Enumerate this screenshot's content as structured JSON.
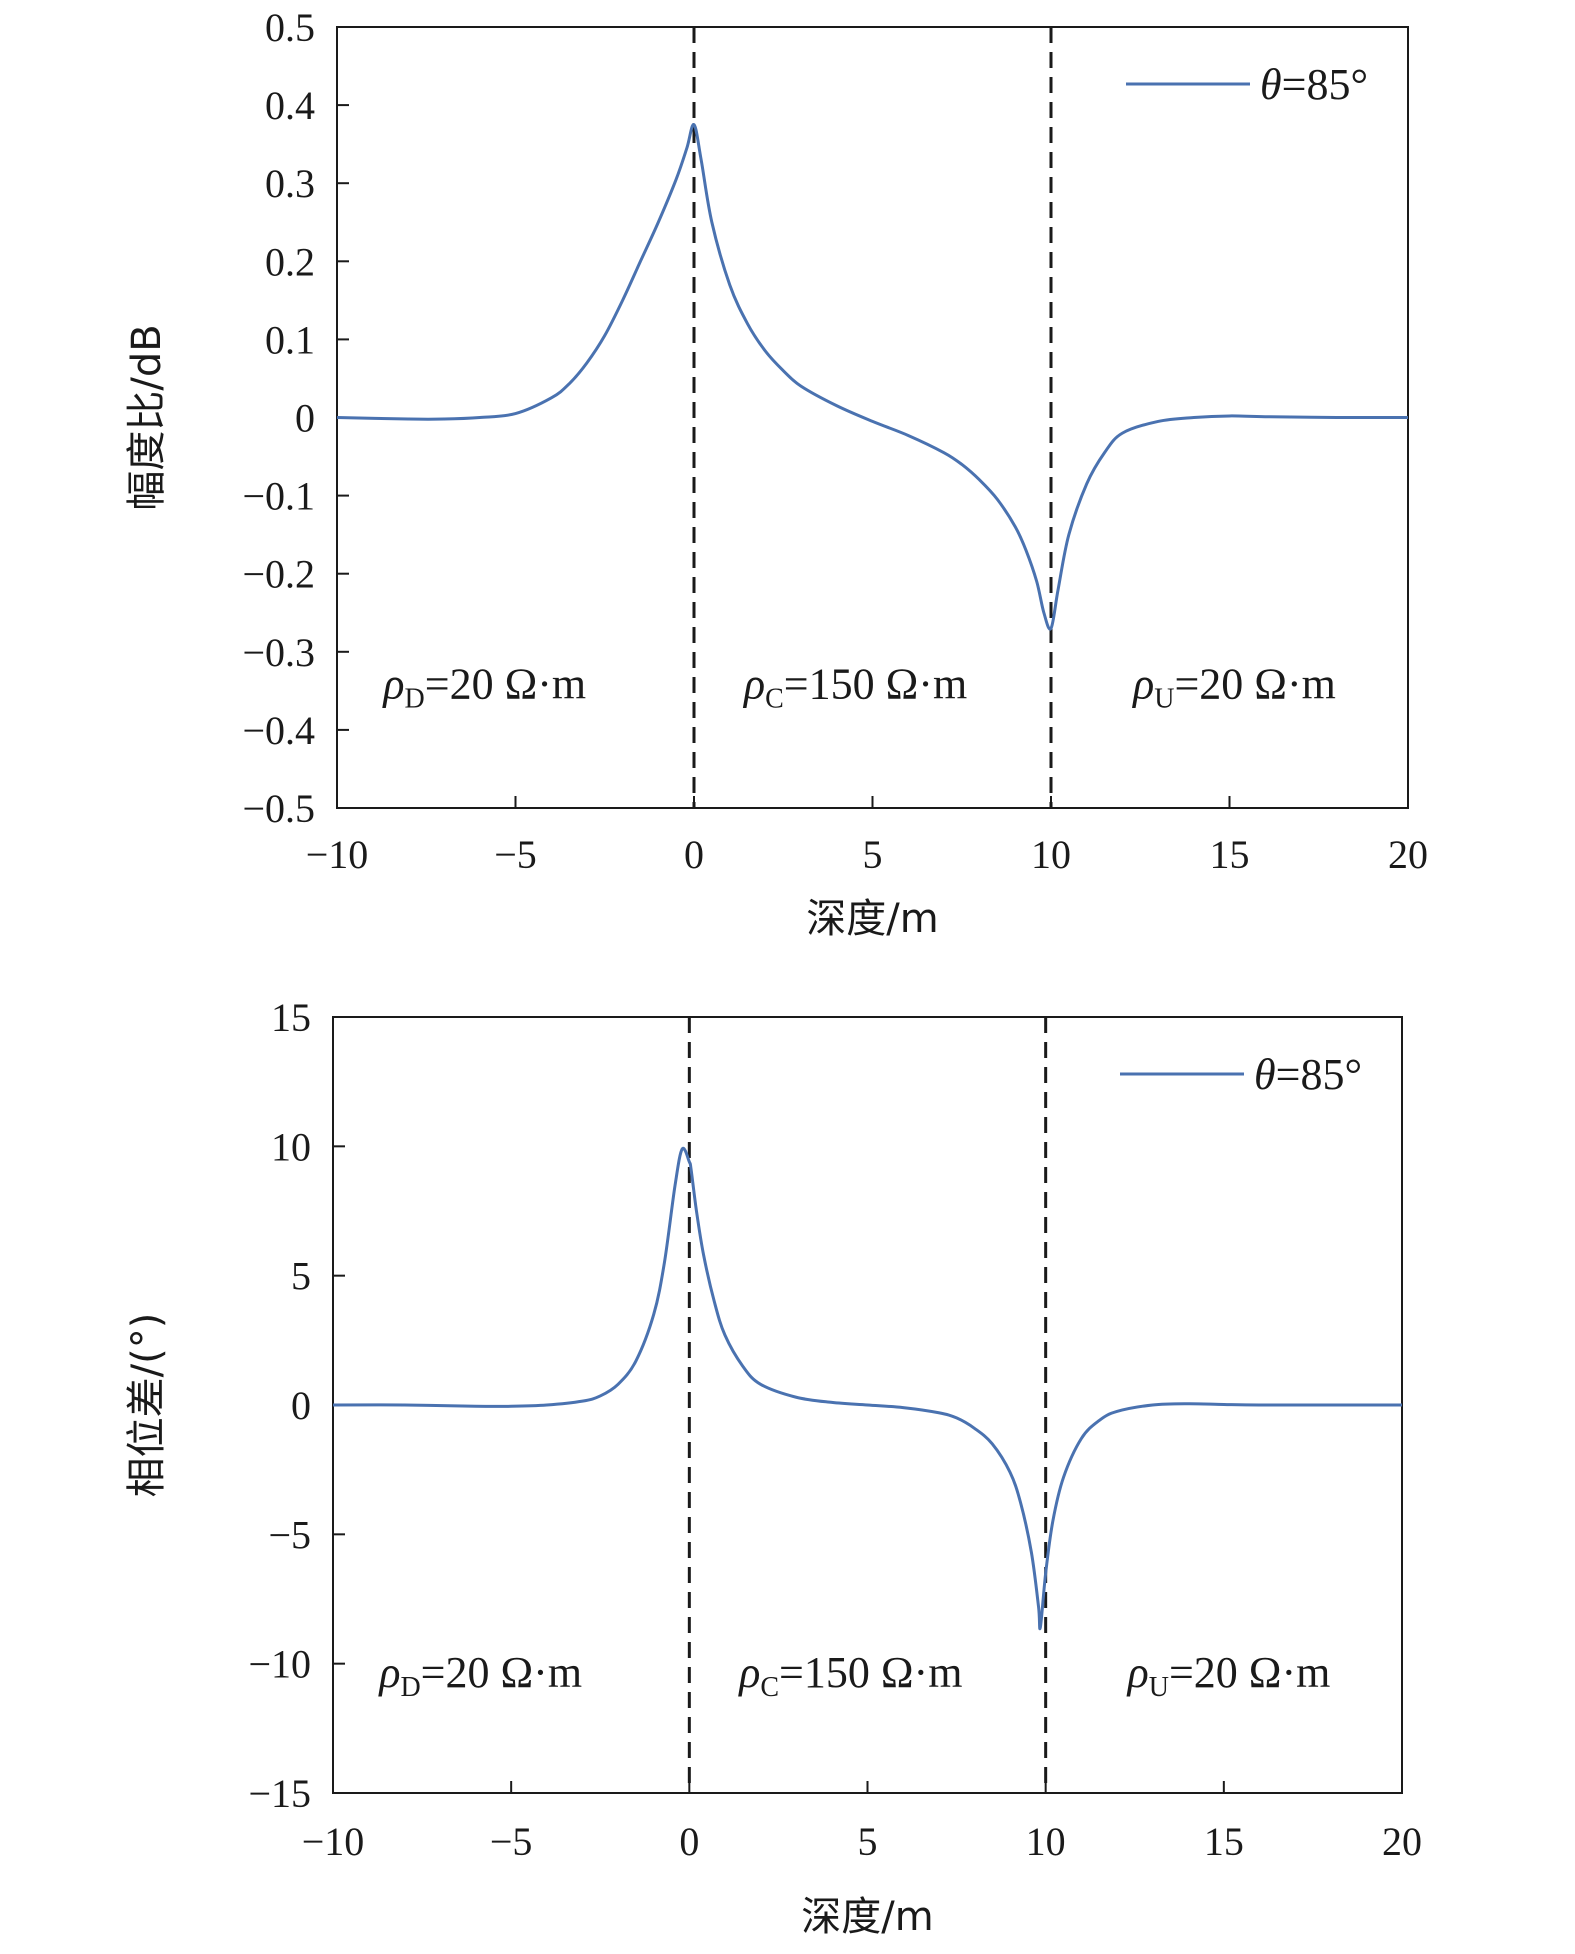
{
  "chart_data": [
    {
      "type": "line",
      "xlabel": "深度/m",
      "ylabel": "幅度比/dB",
      "xlim": [
        -10,
        20
      ],
      "ylim": [
        -0.5,
        0.5
      ],
      "xticks": [
        -10,
        -5,
        0,
        5,
        10,
        15,
        20
      ],
      "yticks": [
        0.5,
        0.4,
        0.3,
        0.2,
        0.1,
        0,
        -0.1,
        -0.2,
        -0.3,
        -0.4,
        -0.5
      ],
      "xtick_labels": [
        "−10",
        "−5",
        "0",
        "5",
        "10",
        "15",
        "20"
      ],
      "ytick_labels": [
        "0.5",
        "0.4",
        "0.3",
        "0.2",
        "0.1",
        "0",
        "−0.1",
        "−0.2",
        "−0.3",
        "−0.4",
        "−0.5"
      ],
      "grid": false,
      "legend": "top-right",
      "boundaries": [
        0,
        10
      ],
      "series": [
        {
          "name_symbol": "θ",
          "name_text": "=85°",
          "color": "#4a72b0",
          "x": [
            -10,
            -8,
            -7,
            -6,
            -5,
            -4,
            -3.5,
            -3,
            -2.5,
            -2,
            -1.5,
            -1,
            -0.5,
            -0.2,
            0,
            0.2,
            0.5,
            1,
            1.5,
            2,
            2.5,
            3,
            4,
            5,
            6,
            7,
            7.5,
            8,
            8.5,
            9,
            9.3,
            9.6,
            9.8,
            10,
            10.2,
            10.5,
            11,
            11.5,
            12,
            13,
            14,
            15,
            16,
            18,
            20
          ],
          "y": [
            0,
            -0.002,
            -0.002,
            0,
            0.005,
            0.025,
            0.043,
            0.07,
            0.105,
            0.15,
            0.2,
            0.25,
            0.305,
            0.345,
            0.375,
            0.33,
            0.25,
            0.17,
            0.12,
            0.085,
            0.06,
            0.04,
            0.015,
            -0.005,
            -0.023,
            -0.045,
            -0.06,
            -0.08,
            -0.105,
            -0.14,
            -0.17,
            -0.21,
            -0.25,
            -0.27,
            -0.22,
            -0.15,
            -0.085,
            -0.045,
            -0.02,
            -0.005,
            0,
            0.002,
            0.001,
            0,
            0
          ]
        }
      ],
      "annotations": [
        {
          "symbol": "ρ",
          "sub": "D",
          "text": "=20 Ω·m",
          "x": -8.7,
          "y": -0.36
        },
        {
          "symbol": "ρ",
          "sub": "C",
          "text": "=150 Ω·m",
          "x": 1.4,
          "y": -0.36
        },
        {
          "symbol": "ρ",
          "sub": "U",
          "text": "=20 Ω·m",
          "x": 12.3,
          "y": -0.36
        }
      ]
    },
    {
      "type": "line",
      "xlabel": "深度/m",
      "ylabel": "相位差/(°)",
      "xlim": [
        -10,
        20
      ],
      "ylim": [
        -15,
        15
      ],
      "xticks": [
        -10,
        -5,
        0,
        5,
        10,
        15,
        20
      ],
      "yticks": [
        15,
        10,
        5,
        0,
        -5,
        -10,
        -15
      ],
      "xtick_labels": [
        "−10",
        "−5",
        "0",
        "5",
        "10",
        "15",
        "20"
      ],
      "ytick_labels": [
        "15",
        "10",
        "5",
        "0",
        "−5",
        "−10",
        "−15"
      ],
      "grid": false,
      "legend": "top-right",
      "boundaries": [
        0,
        10
      ],
      "series": [
        {
          "name_symbol": "θ",
          "name_text": "=85°",
          "color": "#4a72b0",
          "x": [
            -10,
            -8,
            -6,
            -5,
            -4,
            -3,
            -2.5,
            -2,
            -1.5,
            -1,
            -0.7,
            -0.4,
            -0.2,
            0,
            0.05,
            0.2,
            0.4,
            0.7,
            1,
            1.5,
            2,
            3,
            4,
            5,
            6,
            7,
            7.5,
            8,
            8.5,
            9,
            9.3,
            9.6,
            9.8,
            9.85,
            10,
            10.2,
            10.5,
            11,
            11.5,
            12,
            13,
            14,
            15,
            16,
            18,
            20
          ],
          "y": [
            0,
            0,
            -0.05,
            -0.05,
            0,
            0.15,
            0.35,
            0.8,
            1.7,
            3.5,
            5.5,
            8.5,
            9.9,
            9.4,
            9.1,
            7.5,
            5.8,
            4.0,
            2.7,
            1.5,
            0.8,
            0.3,
            0.1,
            0,
            -0.1,
            -0.3,
            -0.5,
            -0.9,
            -1.5,
            -2.6,
            -3.8,
            -5.7,
            -7.8,
            -8.6,
            -6.5,
            -4.5,
            -2.8,
            -1.3,
            -0.6,
            -0.25,
            0,
            0.05,
            0.02,
            0,
            0,
            0
          ]
        }
      ],
      "annotations": [
        {
          "symbol": "ρ",
          "sub": "D",
          "text": "=20 Ω·m",
          "x": -8.7,
          "y": -10.9
        },
        {
          "symbol": "ρ",
          "sub": "C",
          "text": "=150 Ω·m",
          "x": 1.4,
          "y": -10.9
        },
        {
          "symbol": "ρ",
          "sub": "U",
          "text": "=20 Ω·m",
          "x": 12.3,
          "y": -10.9
        }
      ]
    }
  ]
}
